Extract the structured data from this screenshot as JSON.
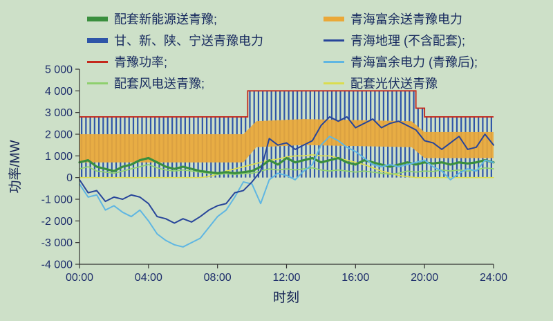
{
  "page": {
    "background": "#cde0c8"
  },
  "legend": {
    "columns": [
      {
        "items": [
          {
            "id": "new-energy",
            "label": "配套新能源送青豫;",
            "color": "#3a8f3e",
            "thick": true
          },
          {
            "id": "gan-xin-shan-ning",
            "label": "甘、新、陕、宁送青豫电力",
            "color": "#2e55a8",
            "thick": true
          },
          {
            "id": "qingyu-power",
            "label": "青豫功率;",
            "color": "#c4281c",
            "thick": false
          },
          {
            "id": "wind",
            "label": "配套风电送青豫;",
            "color": "#8ed06e",
            "thick": false
          }
        ]
      },
      {
        "items": [
          {
            "id": "qinghai-surplus-sent",
            "label": "青海富余送青豫电力",
            "color": "#eaa838",
            "thick": true
          },
          {
            "id": "qinghai-geo",
            "label": "青海地理 (不含配套);",
            "color": "#27459a",
            "thick": false
          },
          {
            "id": "qinghai-surplus-after",
            "label": "青海富余电力 (青豫后);",
            "color": "#5fb6e2",
            "thick": false
          },
          {
            "id": "solar",
            "label": "配套光伏送青豫",
            "color": "#dadd4f",
            "thick": false
          }
        ]
      }
    ]
  },
  "chart_data": {
    "type": "composite-stacked-bar-line",
    "title": "",
    "xlabel": "时刻",
    "ylabel": "功率/MW",
    "xlim": [
      0,
      24
    ],
    "ylim": [
      -4000,
      5000
    ],
    "grid": false,
    "legend_position": "top",
    "xticks": [
      {
        "v": 0,
        "label": "00:00"
      },
      {
        "v": 4,
        "label": "04:00"
      },
      {
        "v": 8,
        "label": "08:00"
      },
      {
        "v": 12,
        "label": "12:00"
      },
      {
        "v": 16,
        "label": "16:00"
      },
      {
        "v": 20,
        "label": "20:00"
      },
      {
        "v": 24,
        "label": "24:00"
      }
    ],
    "yticks": [
      {
        "v": 5000,
        "label": "5 000"
      },
      {
        "v": 4000,
        "label": "4 000"
      },
      {
        "v": 3000,
        "label": "3 000"
      },
      {
        "v": 2000,
        "label": "2 000"
      },
      {
        "v": 1000,
        "label": "1 000"
      },
      {
        "v": 0,
        "label": "0"
      },
      {
        "v": -1000,
        "label": "-1 000"
      },
      {
        "v": -2000,
        "label": "-2 000"
      },
      {
        "v": -3000,
        "label": "-3 000"
      },
      {
        "v": -4000,
        "label": "-4 000"
      }
    ],
    "total": {
      "id": "qingyu-power",
      "name": "青豫功率",
      "color": "#c4281c",
      "width": 1.8,
      "points": [
        [
          0,
          2800
        ],
        [
          9.75,
          2800
        ],
        [
          9.75,
          4000
        ],
        [
          19.5,
          4000
        ],
        [
          19.5,
          3200
        ],
        [
          20,
          3200
        ],
        [
          20,
          2800
        ],
        [
          24,
          2800
        ]
      ]
    },
    "bars": {
      "id": "gan-xin-shan-ning",
      "name": "甘、新、陕、宁送青豫电力",
      "color": "#2e55a8",
      "interval": 0.25,
      "baseline": 0,
      "top_follows": "total"
    },
    "band": {
      "id": "qinghai-surplus-sent",
      "name": "青海富余送青豫电力",
      "color": "#eaa838",
      "bottom": [
        [
          0,
          700
        ],
        [
          9.5,
          700
        ],
        [
          10.25,
          1400
        ],
        [
          13,
          1500
        ],
        [
          19.25,
          1400
        ],
        [
          20,
          900
        ],
        [
          24,
          900
        ]
      ],
      "top": [
        [
          0,
          2000
        ],
        [
          9.5,
          2000
        ],
        [
          10.25,
          2600
        ],
        [
          13,
          2700
        ],
        [
          19.25,
          2600
        ],
        [
          20,
          2100
        ],
        [
          24,
          2100
        ]
      ]
    },
    "lines": [
      {
        "id": "solar",
        "name": "配套光伏送青豫",
        "color": "#dadd4f",
        "width": 1.7,
        "x0": 0,
        "dx": 0.5,
        "values": [
          0,
          0,
          0,
          0,
          0,
          0,
          0,
          0,
          0,
          0,
          0,
          0,
          0,
          0,
          0,
          50,
          150,
          300,
          400,
          500,
          600,
          700,
          800,
          850,
          950,
          1000,
          1000,
          1050,
          1000,
          1000,
          900,
          800,
          700,
          600,
          450,
          300,
          200,
          100,
          50,
          0,
          0,
          0,
          0,
          0,
          0,
          0,
          0,
          0,
          0
        ]
      },
      {
        "id": "wind",
        "name": "配套风电送青豫",
        "color": "#8ed06e",
        "width": 1.7,
        "x0": 0,
        "dx": 0.5,
        "values": [
          400,
          500,
          300,
          250,
          200,
          300,
          400,
          500,
          600,
          450,
          350,
          300,
          350,
          300,
          250,
          200,
          150,
          180,
          150,
          180,
          200,
          300,
          400,
          350,
          400,
          350,
          400,
          450,
          350,
          300,
          350,
          300,
          250,
          300,
          250,
          200,
          150,
          200,
          300,
          250,
          300,
          280,
          350,
          300,
          350,
          300,
          350,
          450,
          400
        ]
      },
      {
        "id": "new-energy",
        "name": "配套新能源送青豫",
        "color": "#3a8f3e",
        "width": 3.2,
        "x0": 0,
        "dx": 0.5,
        "values": [
          700,
          800,
          500,
          400,
          300,
          500,
          600,
          800,
          900,
          700,
          500,
          400,
          500,
          400,
          300,
          250,
          200,
          250,
          200,
          250,
          300,
          500,
          800,
          600,
          900,
          700,
          800,
          900,
          700,
          800,
          900,
          700,
          600,
          800,
          700,
          600,
          500,
          600,
          700,
          600,
          700,
          650,
          700,
          600,
          700,
          650,
          700,
          800,
          700
        ]
      },
      {
        "id": "qinghai-surplus-after",
        "name": "青海富余电力 (青豫后)",
        "color": "#5fb6e2",
        "width": 2,
        "x0": 0,
        "dx": 0.5,
        "values": [
          -300,
          -900,
          -800,
          -1500,
          -1300,
          -1600,
          -1800,
          -1500,
          -2000,
          -2600,
          -2900,
          -3100,
          -3200,
          -3000,
          -2800,
          -2300,
          -1800,
          -1500,
          -900,
          -200,
          -300,
          -1200,
          -100,
          200,
          100,
          -100,
          300,
          600,
          1500,
          1900,
          1700,
          1400,
          1200,
          900,
          600,
          500,
          600,
          500,
          600,
          700,
          800,
          500,
          300,
          -100,
          200,
          400,
          300,
          800,
          700
        ]
      },
      {
        "id": "qinghai-geo",
        "name": "青海地理 (不含配套)",
        "color": "#27459a",
        "width": 2,
        "x0": 0,
        "dx": 0.5,
        "values": [
          -100,
          -700,
          -600,
          -1100,
          -900,
          -1000,
          -800,
          -900,
          -1200,
          -1800,
          -1900,
          -2100,
          -1900,
          -2050,
          -1800,
          -1500,
          -1300,
          -1200,
          -700,
          -600,
          -200,
          300,
          1800,
          1500,
          1600,
          1300,
          1500,
          1700,
          2400,
          2800,
          2600,
          2800,
          2300,
          2500,
          2700,
          2300,
          2500,
          2600,
          2400,
          2200,
          1700,
          1600,
          1300,
          1600,
          1900,
          1300,
          1400,
          2000,
          1500
        ]
      }
    ]
  }
}
